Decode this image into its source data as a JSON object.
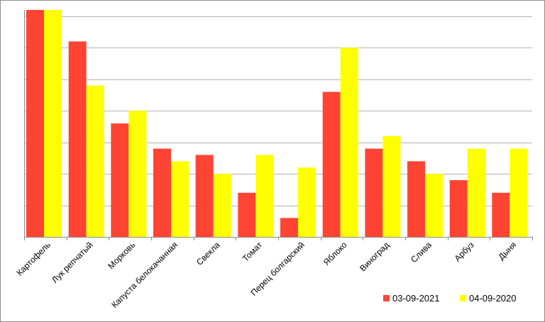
{
  "chart_data": {
    "type": "bar",
    "title": "",
    "xlabel": "",
    "ylabel": "",
    "categories": [
      "Картофель",
      "Лук репчатый",
      "Морковь",
      "Капуста белокачанная",
      "Свекла",
      "Томат",
      "Перец болгарский",
      "Яблоко",
      "Виноград",
      "Слива",
      "Арбуз",
      "Дыня"
    ],
    "series": [
      {
        "name": "03-09-2021",
        "color": "#ff4433",
        "values": [
          36,
          31,
          18,
          14,
          13,
          7,
          3,
          23,
          14,
          12,
          9,
          7
        ]
      },
      {
        "name": "04-09-2020",
        "color": "#ffff00",
        "values": [
          36,
          24,
          20,
          12,
          10,
          13,
          11,
          30,
          16,
          10,
          14,
          14
        ]
      }
    ],
    "ylim": [
      0,
      36
    ],
    "y_grid_step": 5,
    "grid": true,
    "y_tick_labels_visible": false,
    "legend_position": "bottom-right"
  }
}
